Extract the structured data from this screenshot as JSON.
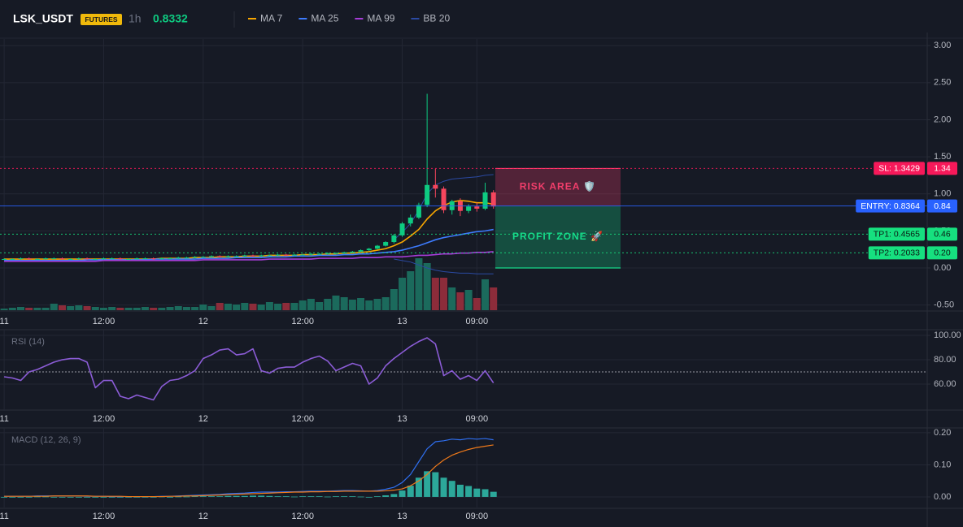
{
  "header": {
    "symbol": "LSK_USDT",
    "badge": "FUTURES",
    "interval": "1h",
    "price": 0.8332
  },
  "chart_data": [
    {
      "type": "candlestick",
      "x": [
        0,
        1,
        2,
        3,
        4,
        5,
        6,
        7,
        8,
        9,
        10,
        11,
        12,
        13,
        14,
        15,
        16,
        17,
        18,
        19,
        20,
        21,
        22,
        23,
        24,
        25,
        26,
        27,
        28,
        29,
        30,
        31,
        32,
        33,
        34,
        35,
        36,
        37,
        38,
        39,
        40,
        41,
        42,
        43,
        44,
        45,
        46,
        47,
        48,
        49,
        50,
        51,
        52,
        53,
        54,
        55,
        56,
        57,
        58,
        59
      ],
      "open": [
        0.12,
        0.12,
        0.12,
        0.13,
        0.12,
        0.12,
        0.13,
        0.13,
        0.12,
        0.12,
        0.13,
        0.12,
        0.12,
        0.13,
        0.13,
        0.12,
        0.12,
        0.13,
        0.13,
        0.12,
        0.13,
        0.13,
        0.14,
        0.14,
        0.15,
        0.15,
        0.16,
        0.15,
        0.16,
        0.16,
        0.17,
        0.16,
        0.17,
        0.17,
        0.18,
        0.17,
        0.18,
        0.18,
        0.19,
        0.19,
        0.2,
        0.2,
        0.21,
        0.22,
        0.24,
        0.26,
        0.3,
        0.35,
        0.44,
        0.6,
        0.68,
        0.85,
        1.12,
        1.07,
        0.78,
        0.9,
        0.77,
        0.83,
        0.8,
        1.02
      ],
      "high": [
        0.13,
        0.13,
        0.14,
        0.14,
        0.13,
        0.14,
        0.14,
        0.14,
        0.13,
        0.14,
        0.14,
        0.13,
        0.14,
        0.14,
        0.14,
        0.13,
        0.14,
        0.14,
        0.14,
        0.14,
        0.14,
        0.15,
        0.15,
        0.16,
        0.16,
        0.17,
        0.17,
        0.17,
        0.17,
        0.18,
        0.18,
        0.18,
        0.18,
        0.19,
        0.19,
        0.19,
        0.19,
        0.2,
        0.2,
        0.21,
        0.21,
        0.22,
        0.23,
        0.25,
        0.27,
        0.31,
        0.36,
        0.46,
        0.62,
        0.72,
        0.88,
        2.35,
        1.34,
        1.1,
        0.92,
        0.94,
        0.86,
        0.88,
        1.15,
        1.05
      ],
      "low": [
        0.11,
        0.11,
        0.11,
        0.11,
        0.11,
        0.11,
        0.12,
        0.11,
        0.11,
        0.11,
        0.11,
        0.11,
        0.11,
        0.12,
        0.11,
        0.11,
        0.11,
        0.12,
        0.11,
        0.11,
        0.12,
        0.12,
        0.13,
        0.13,
        0.14,
        0.14,
        0.14,
        0.14,
        0.15,
        0.15,
        0.15,
        0.15,
        0.16,
        0.16,
        0.16,
        0.16,
        0.17,
        0.17,
        0.18,
        0.18,
        0.19,
        0.19,
        0.2,
        0.21,
        0.23,
        0.25,
        0.29,
        0.33,
        0.42,
        0.56,
        0.66,
        0.82,
        0.95,
        0.74,
        0.72,
        0.7,
        0.74,
        0.76,
        0.78,
        0.8
      ],
      "close": [
        0.12,
        0.12,
        0.13,
        0.12,
        0.12,
        0.13,
        0.13,
        0.12,
        0.12,
        0.13,
        0.12,
        0.12,
        0.13,
        0.13,
        0.12,
        0.12,
        0.13,
        0.13,
        0.12,
        0.13,
        0.13,
        0.14,
        0.14,
        0.15,
        0.15,
        0.16,
        0.15,
        0.16,
        0.16,
        0.17,
        0.16,
        0.17,
        0.17,
        0.18,
        0.17,
        0.18,
        0.18,
        0.19,
        0.19,
        0.2,
        0.2,
        0.21,
        0.22,
        0.24,
        0.26,
        0.3,
        0.35,
        0.44,
        0.6,
        0.68,
        0.85,
        1.12,
        1.07,
        0.78,
        0.9,
        0.77,
        0.83,
        0.8,
        1.02,
        0.83
      ],
      "volume": [
        2,
        3,
        4,
        3,
        3,
        3,
        8,
        6,
        5,
        6,
        5,
        4,
        3,
        4,
        3,
        3,
        3,
        4,
        3,
        3,
        4,
        5,
        4,
        4,
        7,
        5,
        9,
        8,
        7,
        9,
        8,
        7,
        10,
        8,
        9,
        9,
        12,
        14,
        10,
        14,
        18,
        16,
        13,
        15,
        12,
        14,
        16,
        26,
        40,
        48,
        64,
        58,
        40,
        40,
        28,
        22,
        25,
        15,
        38,
        28
      ],
      "up_color": "#0ecb81",
      "down_color": "#f6465d",
      "volume_up_color": "#1b6a5c",
      "volume_down_color": "#8c2c3a",
      "series": [
        {
          "name": "MA 7",
          "color": "#f7a600",
          "values": [
            0.12,
            0.12,
            0.12,
            0.12,
            0.12,
            0.12,
            0.12,
            0.12,
            0.12,
            0.12,
            0.12,
            0.12,
            0.12,
            0.12,
            0.12,
            0.12,
            0.12,
            0.12,
            0.12,
            0.13,
            0.13,
            0.13,
            0.13,
            0.14,
            0.14,
            0.14,
            0.15,
            0.15,
            0.15,
            0.16,
            0.16,
            0.16,
            0.17,
            0.17,
            0.17,
            0.17,
            0.18,
            0.18,
            0.18,
            0.19,
            0.19,
            0.2,
            0.2,
            0.21,
            0.22,
            0.24,
            0.26,
            0.3,
            0.35,
            0.43,
            0.52,
            0.66,
            0.77,
            0.84,
            0.89,
            0.91,
            0.9,
            0.88,
            0.88,
            0.86
          ]
        },
        {
          "name": "MA 25",
          "color": "#3d7bfd",
          "values": [
            0.1,
            0.1,
            0.1,
            0.1,
            0.1,
            0.1,
            0.1,
            0.1,
            0.1,
            0.1,
            0.11,
            0.11,
            0.11,
            0.11,
            0.11,
            0.11,
            0.11,
            0.11,
            0.12,
            0.12,
            0.12,
            0.12,
            0.12,
            0.12,
            0.13,
            0.13,
            0.13,
            0.13,
            0.14,
            0.14,
            0.14,
            0.14,
            0.15,
            0.15,
            0.15,
            0.16,
            0.16,
            0.16,
            0.17,
            0.17,
            0.17,
            0.18,
            0.18,
            0.19,
            0.19,
            0.2,
            0.21,
            0.22,
            0.24,
            0.27,
            0.3,
            0.34,
            0.38,
            0.41,
            0.43,
            0.45,
            0.47,
            0.49,
            0.5,
            0.52
          ]
        },
        {
          "name": "MA 99",
          "color": "#a63dd8",
          "values": [
            0.09,
            0.09,
            0.09,
            0.09,
            0.09,
            0.09,
            0.09,
            0.09,
            0.09,
            0.09,
            0.09,
            0.09,
            0.1,
            0.1,
            0.1,
            0.1,
            0.1,
            0.1,
            0.1,
            0.1,
            0.1,
            0.1,
            0.1,
            0.1,
            0.11,
            0.11,
            0.11,
            0.11,
            0.11,
            0.11,
            0.11,
            0.11,
            0.12,
            0.12,
            0.12,
            0.12,
            0.12,
            0.12,
            0.13,
            0.13,
            0.13,
            0.13,
            0.13,
            0.14,
            0.14,
            0.14,
            0.15,
            0.15,
            0.15,
            0.16,
            0.17,
            0.17,
            0.18,
            0.19,
            0.19,
            0.2,
            0.2,
            0.21,
            0.21,
            0.22
          ]
        },
        {
          "name": "BB 20",
          "color": "#2b4aa3",
          "upper": [
            null,
            null,
            null,
            null,
            null,
            null,
            null,
            null,
            null,
            null,
            null,
            null,
            null,
            null,
            null,
            null,
            null,
            null,
            null,
            null,
            null,
            null,
            null,
            null,
            null,
            null,
            null,
            null,
            null,
            null,
            null,
            null,
            null,
            null,
            null,
            null,
            null,
            null,
            null,
            null,
            null,
            null,
            null,
            null,
            null,
            null,
            null,
            0.38,
            0.48,
            0.6,
            0.78,
            1.0,
            1.12,
            1.17,
            1.2,
            1.21,
            1.22,
            1.23,
            1.25,
            1.26
          ],
          "lower": [
            null,
            null,
            null,
            null,
            null,
            null,
            null,
            null,
            null,
            null,
            null,
            null,
            null,
            null,
            null,
            null,
            null,
            null,
            null,
            null,
            null,
            null,
            null,
            null,
            null,
            null,
            null,
            null,
            null,
            null,
            null,
            null,
            null,
            null,
            null,
            null,
            null,
            null,
            null,
            null,
            null,
            null,
            null,
            null,
            null,
            null,
            null,
            0.12,
            0.1,
            0.08,
            0.04,
            0.0,
            -0.03,
            -0.05,
            -0.06,
            -0.07,
            -0.07,
            -0.08,
            -0.08,
            -0.08
          ]
        }
      ],
      "xlim": [
        -0.5,
        111.3
      ],
      "xticks": [
        {
          "value": 0,
          "label": "11"
        },
        {
          "value": 12,
          "label": "12:00"
        },
        {
          "value": 24,
          "label": "12"
        },
        {
          "value": 36,
          "label": "12:00"
        },
        {
          "value": 48,
          "label": "13"
        },
        {
          "value": 57,
          "label": "09:00"
        }
      ],
      "ylim": [
        -0.57,
        3.09
      ],
      "yticks": [
        {
          "value": 3,
          "label": "3.00"
        },
        {
          "value": 2.5,
          "label": "2.50"
        },
        {
          "value": 2,
          "label": "2.00"
        },
        {
          "value": 1.5,
          "label": "1.50"
        },
        {
          "value": 1,
          "label": "1.00"
        },
        {
          "value": 0.5,
          "label": "0.50"
        },
        {
          "value": 0,
          "label": "0.00"
        },
        {
          "value": -0.5,
          "label": "-0.50"
        }
      ],
      "grid": true,
      "levels": [
        {
          "value": 1.3429,
          "text": "SL: 1.3429",
          "axis_label": "1.34",
          "color": "#f7195a",
          "text_color": "#ffffff",
          "line": "dotted"
        },
        {
          "value": 0.8364,
          "text": "ENTRY: 0.8364",
          "axis_label": "0.84",
          "color": "#2962ff",
          "text_color": "#ffffff",
          "line": "solid"
        },
        {
          "value": 0.4565,
          "text": "TP1: 0.4565",
          "axis_label": "0.46",
          "color": "#16e07f",
          "text_color": "#0b1a14",
          "line": "dotted"
        },
        {
          "value": 0.2033,
          "text": "TP2: 0.2033",
          "axis_label": "0.20",
          "color": "#16e07f",
          "text_color": "#0b1a14",
          "line": "dotted"
        }
      ],
      "zones": [
        {
          "label": "RISK AREA 🛡️",
          "from": 0.8364,
          "to": 1.3429,
          "color": "#f23e6b"
        },
        {
          "label": "PROFIT ZONE 🚀",
          "from": 0,
          "to": 0.8364,
          "color": "#16d98a"
        }
      ]
    },
    {
      "type": "line",
      "title": "RSI (14)",
      "series": [
        {
          "color": "#8b5cd6",
          "values": [
            66,
            65,
            63,
            70,
            72,
            75,
            78,
            80,
            81,
            81,
            78,
            57,
            63,
            63,
            50,
            48,
            51,
            49,
            47,
            58,
            63,
            64,
            67,
            71,
            81,
            84,
            88,
            89,
            84,
            85,
            89,
            71,
            69,
            73,
            74,
            74,
            78,
            81,
            83,
            79,
            71,
            74,
            77,
            75,
            60,
            65,
            75,
            81,
            86,
            91,
            95,
            98,
            93,
            67,
            71,
            64,
            67,
            63,
            71,
            61
          ]
        }
      ],
      "reference_line": 70,
      "xlim": [
        -0.5,
        111.3
      ],
      "xticks": [
        {
          "value": 0,
          "label": "11"
        },
        {
          "value": 12,
          "label": "12:00"
        },
        {
          "value": 24,
          "label": "12"
        },
        {
          "value": 36,
          "label": "12:00"
        },
        {
          "value": 48,
          "label": "13"
        },
        {
          "value": 57,
          "label": "09:00"
        }
      ],
      "ylim": [
        38,
        104.7
      ],
      "yticks": [
        {
          "value": 100,
          "label": "100.00"
        },
        {
          "value": 80,
          "label": "80.00"
        },
        {
          "value": 60,
          "label": "60.00"
        }
      ],
      "grid": true
    },
    {
      "type": "macd",
      "title": "MACD (12, 26, 9)",
      "series": [
        {
          "color": "#2f6ff0",
          "values": [
            0.002,
            0.002,
            0.002,
            0.002,
            0.003,
            0.003,
            0.003,
            0.003,
            0.003,
            0.003,
            0.002,
            0.002,
            0.002,
            0.001,
            0.001,
            0.001,
            0.001,
            0.001,
            0.001,
            0.002,
            0.002,
            0.003,
            0.004,
            0.005,
            0.006,
            0.007,
            0.008,
            0.01,
            0.011,
            0.012,
            0.014,
            0.015,
            0.015,
            0.015,
            0.016,
            0.016,
            0.017,
            0.018,
            0.018,
            0.018,
            0.019,
            0.02,
            0.02,
            0.019,
            0.018,
            0.02,
            0.024,
            0.03,
            0.045,
            0.07,
            0.11,
            0.15,
            0.172,
            0.175,
            0.18,
            0.178,
            0.182,
            0.18,
            0.182,
            0.178
          ]
        },
        {
          "color": "#f07a1a",
          "values": [
            0.002,
            0.002,
            0.002,
            0.002,
            0.002,
            0.002,
            0.003,
            0.003,
            0.003,
            0.003,
            0.003,
            0.002,
            0.002,
            0.002,
            0.002,
            0.001,
            0.001,
            0.001,
            0.001,
            0.001,
            0.002,
            0.002,
            0.003,
            0.003,
            0.004,
            0.005,
            0.006,
            0.007,
            0.008,
            0.009,
            0.01,
            0.011,
            0.012,
            0.013,
            0.014,
            0.015,
            0.015,
            0.016,
            0.016,
            0.017,
            0.017,
            0.018,
            0.018,
            0.018,
            0.018,
            0.018,
            0.019,
            0.021,
            0.025,
            0.035,
            0.05,
            0.07,
            0.095,
            0.115,
            0.13,
            0.14,
            0.148,
            0.154,
            0.158,
            0.162
          ]
        }
      ],
      "histogram": {
        "color": "#2ca89a",
        "values": [
          0,
          0,
          0,
          0,
          0.001,
          0.001,
          0,
          0,
          0,
          0,
          -0.001,
          0,
          0,
          -0.001,
          -0.001,
          0,
          0,
          0,
          0,
          0.001,
          0,
          0.001,
          0.001,
          0.002,
          0.002,
          0.002,
          0.002,
          0.003,
          0.003,
          0.003,
          0.004,
          0.004,
          0.003,
          0.002,
          0.002,
          0.001,
          0.002,
          0.002,
          0.002,
          0.001,
          0.002,
          0.002,
          0.002,
          0.001,
          0,
          0.002,
          0.005,
          0.009,
          0.02,
          0.035,
          0.06,
          0.08,
          0.077,
          0.06,
          0.05,
          0.038,
          0.034,
          0.026,
          0.024,
          0.016
        ]
      },
      "xlim": [
        -0.5,
        111.3
      ],
      "xticks": [
        {
          "value": 0,
          "label": "11"
        },
        {
          "value": 12,
          "label": "12:00"
        },
        {
          "value": 24,
          "label": "12"
        },
        {
          "value": 36,
          "label": "12:00"
        },
        {
          "value": 48,
          "label": "13"
        },
        {
          "value": 57,
          "label": "09:00"
        }
      ],
      "ylim": [
        -0.033,
        0.215
      ],
      "yticks": [
        {
          "value": 0.2,
          "label": "0.20"
        },
        {
          "value": 0.1,
          "label": "0.10"
        },
        {
          "value": 0,
          "label": "0.00"
        }
      ],
      "grid": true
    }
  ]
}
